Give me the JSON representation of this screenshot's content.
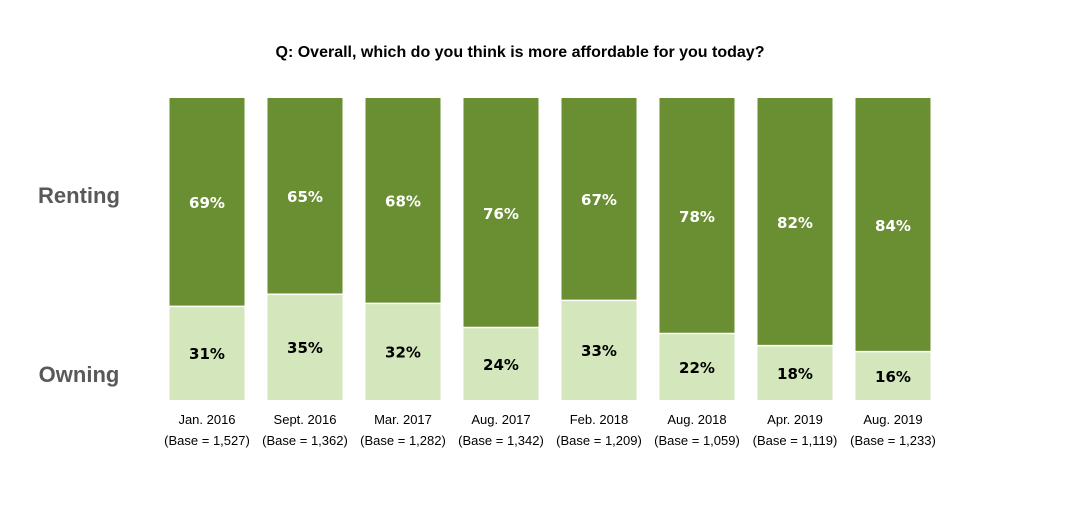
{
  "chart_data": {
    "type": "bar",
    "stacked": true,
    "percent_stacked": true,
    "title": "Q: Overall, which do you think is more affordable for you today?",
    "categories": [
      "Jan. 2016",
      "Sept. 2016",
      "Mar. 2017",
      "Aug. 2017",
      "Feb. 2018",
      "Aug. 2018",
      "Apr. 2019",
      "Aug. 2019"
    ],
    "bases": [
      "(Base = 1,527)",
      "(Base = 1,362)",
      "(Base = 1,282)",
      "(Base = 1,342)",
      "(Base = 1,209)",
      "(Base = 1,059)",
      "(Base = 1,119)",
      "(Base = 1,233)"
    ],
    "series": [
      {
        "name": "Owning",
        "color": "#d3e6bc",
        "label_color": "#000000",
        "values": [
          31,
          35,
          32,
          24,
          33,
          22,
          18,
          16
        ],
        "labels": [
          "31%",
          "35%",
          "32%",
          "24%",
          "33%",
          "22%",
          "18%",
          "16%"
        ]
      },
      {
        "name": "Renting",
        "color": "#6a8f33",
        "label_color": "#ffffff",
        "values": [
          69,
          65,
          68,
          76,
          67,
          78,
          82,
          84
        ],
        "labels": [
          "69%",
          "65%",
          "68%",
          "76%",
          "67%",
          "78%",
          "82%",
          "84%"
        ]
      }
    ],
    "row_labels": [
      "Renting",
      "Owning"
    ],
    "ylim": [
      0,
      100
    ],
    "grid": false,
    "legend": "none"
  }
}
